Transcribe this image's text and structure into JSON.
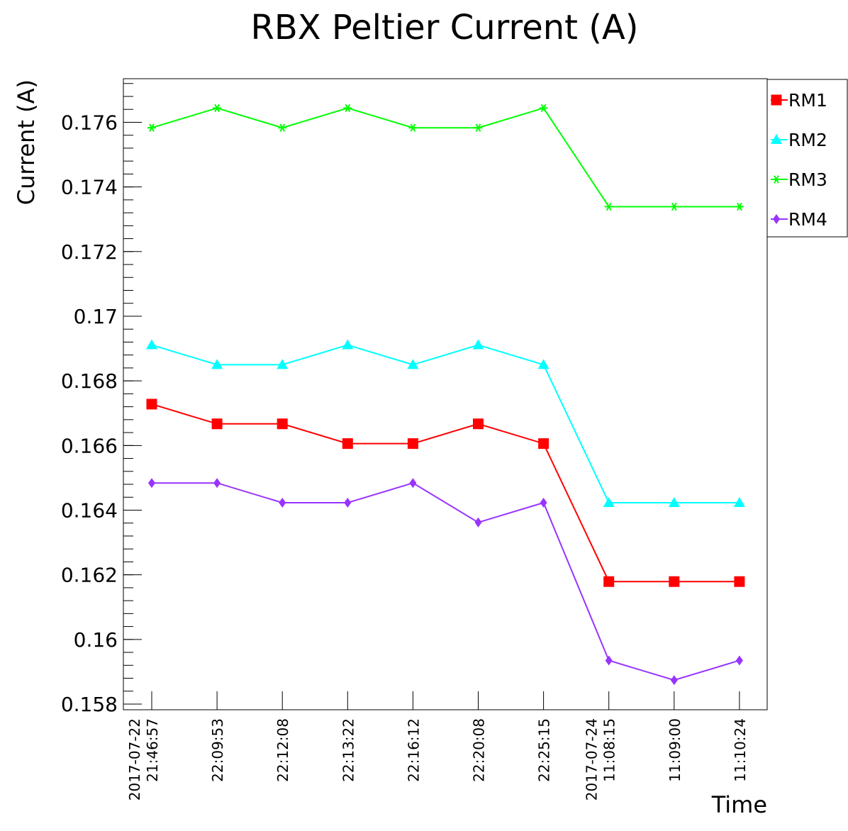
{
  "chart_data": {
    "type": "line",
    "title": "RBX Peltier Current (A)",
    "xlabel": "Time",
    "ylabel": "Current (A)",
    "ylim": [
      0.1578,
      0.1773
    ],
    "yticks": [
      {
        "value": 0.158,
        "label": "0.158"
      },
      {
        "value": 0.16,
        "label": "0.16"
      },
      {
        "value": 0.162,
        "label": "0.162"
      },
      {
        "value": 0.164,
        "label": "0.164"
      },
      {
        "value": 0.166,
        "label": "0.166"
      },
      {
        "value": 0.168,
        "label": "0.168"
      },
      {
        "value": 0.17,
        "label": "0.17"
      },
      {
        "value": 0.172,
        "label": "0.172"
      },
      {
        "value": 0.174,
        "label": "0.174"
      },
      {
        "value": 0.176,
        "label": "0.176"
      }
    ],
    "categories": [
      [
        "2017-07-22",
        "21:46:57"
      ],
      [
        "22:09:53"
      ],
      [
        "22:12:08"
      ],
      [
        "22:13:22"
      ],
      [
        "22:16:12"
      ],
      [
        "22:20:08"
      ],
      [
        "22:25:15"
      ],
      [
        "2017-07-24",
        "11:08:15"
      ],
      [
        "11:09:00"
      ],
      [
        "11:10:24"
      ]
    ],
    "legend_position": "top-right",
    "grid": false,
    "series": [
      {
        "name": "RM1",
        "color": "#ff0000",
        "marker": "square",
        "values": [
          0.16728,
          0.16667,
          0.16667,
          0.16606,
          0.16606,
          0.16667,
          0.16606,
          0.16179,
          0.16179,
          0.16179
        ]
      },
      {
        "name": "RM2",
        "color": "#00ffff",
        "marker": "triangle",
        "values": [
          0.16911,
          0.1685,
          0.1685,
          0.16911,
          0.1685,
          0.16911,
          0.1685,
          0.16423,
          0.16423,
          0.16423
        ]
      },
      {
        "name": "RM3",
        "color": "#00ff00",
        "marker": "star",
        "values": [
          0.17583,
          0.17644,
          0.17583,
          0.17644,
          0.17583,
          0.17583,
          0.17644,
          0.17339,
          0.17339,
          0.17339
        ]
      },
      {
        "name": "RM4",
        "color": "#9933ff",
        "marker": "diamond",
        "values": [
          0.16484,
          0.16484,
          0.16423,
          0.16423,
          0.16484,
          0.16362,
          0.16423,
          0.15935,
          0.15874,
          0.15935
        ]
      }
    ]
  }
}
